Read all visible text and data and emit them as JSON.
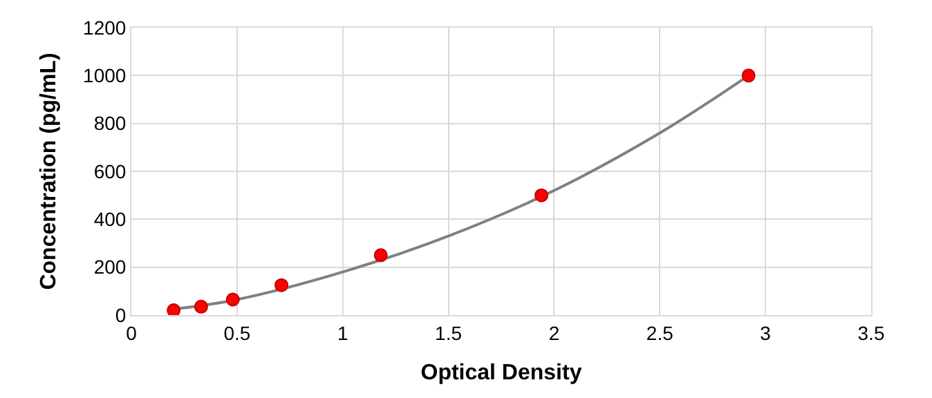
{
  "chart_data": {
    "type": "scatter",
    "xlabel": "Optical Density",
    "ylabel": "Concentration (pg/mL)",
    "series": [
      {
        "type": "line",
        "color": "#808080",
        "marker": "none",
        "x": [
          0.2,
          0.5,
          1.0,
          1.5,
          2.0,
          2.5,
          2.92
        ],
        "values": [
          25,
          65,
          180,
          330,
          520,
          760,
          1000
        ]
      },
      {
        "color": "#ff0000",
        "marker": "circle",
        "x": [
          0.2,
          0.33,
          0.48,
          0.71,
          1.18,
          1.94,
          2.92
        ],
        "values": [
          20,
          35,
          65,
          125,
          250,
          500,
          1000
        ]
      }
    ],
    "xlim": [
      0,
      3.5
    ],
    "xticks": [
      0,
      0.5,
      1,
      1.5,
      2,
      2.5,
      3,
      3.5
    ],
    "ylim": [
      0,
      1200
    ],
    "yticks": [
      0,
      200,
      400,
      600,
      800,
      1000,
      1200
    ],
    "grid": true
  }
}
